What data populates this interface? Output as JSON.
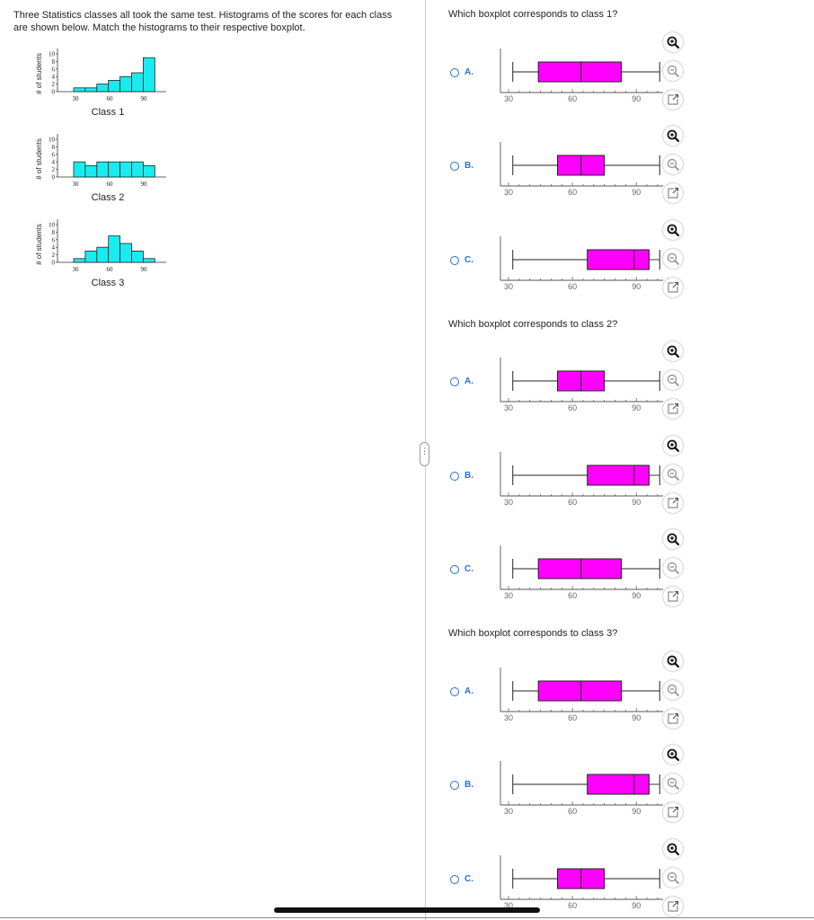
{
  "intro": {
    "text": "Three Statistics classes all took the same test. Histograms of the scores for each class are shown below. Match the histograms to their respective boxplot."
  },
  "histograms": [
    {
      "caption": "Class 1",
      "ylabel": "# of students",
      "y_ticks": [
        "10",
        "8",
        "6",
        "4",
        "2",
        "0"
      ],
      "x_ticks": [
        "30",
        "60",
        "90"
      ],
      "counts": [
        1,
        1,
        2,
        3,
        4,
        5,
        9
      ],
      "bar_color": "#19ecf0"
    },
    {
      "caption": "Class 2",
      "ylabel": "# of students",
      "y_ticks": [
        "10",
        "8",
        "6",
        "4",
        "2",
        "0"
      ],
      "x_ticks": [
        "30",
        "60",
        "90"
      ],
      "counts": [
        4,
        3,
        4,
        4,
        4,
        4,
        3
      ],
      "bar_color": "#19ecf0"
    },
    {
      "caption": "Class 3",
      "ylabel": "# of students",
      "y_ticks": [
        "10",
        "8",
        "6",
        "4",
        "2",
        "0"
      ],
      "x_ticks": [
        "30",
        "60",
        "90"
      ],
      "counts": [
        1,
        3,
        4,
        7,
        5,
        3,
        1
      ],
      "bar_color": "#19ecf0"
    }
  ],
  "axis_scale": {
    "min": 30,
    "max": 105,
    "ticks": [
      "30",
      "60",
      "90"
    ]
  },
  "questions": [
    {
      "prompt": "Which boxplot corresponds to class 1?",
      "options": [
        {
          "letter": "A.",
          "stats": {
            "min": 32,
            "q1": 44,
            "median": 64,
            "q3": 83,
            "max": 101
          }
        },
        {
          "letter": "B.",
          "stats": {
            "min": 32,
            "q1": 53,
            "median": 64,
            "q3": 75,
            "max": 101
          }
        },
        {
          "letter": "C.",
          "stats": {
            "min": 32,
            "q1": 67,
            "median": 89,
            "q3": 96,
            "max": 101
          }
        }
      ]
    },
    {
      "prompt": "Which boxplot corresponds to class 2?",
      "options": [
        {
          "letter": "A.",
          "stats": {
            "min": 32,
            "q1": 53,
            "median": 64,
            "q3": 75,
            "max": 101
          }
        },
        {
          "letter": "B.",
          "stats": {
            "min": 32,
            "q1": 67,
            "median": 89,
            "q3": 96,
            "max": 101
          }
        },
        {
          "letter": "C.",
          "stats": {
            "min": 32,
            "q1": 44,
            "median": 64,
            "q3": 83,
            "max": 101
          }
        }
      ]
    },
    {
      "prompt": "Which boxplot corresponds to class 3?",
      "options": [
        {
          "letter": "A.",
          "stats": {
            "min": 32,
            "q1": 44,
            "median": 64,
            "q3": 83,
            "max": 101
          }
        },
        {
          "letter": "B.",
          "stats": {
            "min": 32,
            "q1": 67,
            "median": 89,
            "q3": 96,
            "max": 101
          }
        },
        {
          "letter": "C.",
          "stats": {
            "min": 32,
            "q1": 53,
            "median": 64,
            "q3": 75,
            "max": 101
          }
        }
      ]
    }
  ],
  "icons": [
    "zoom-in-icon",
    "zoom-out-icon",
    "open-external-icon"
  ],
  "colors": {
    "box_fill": "#ff00ff",
    "histogram_fill": "#19ecf0",
    "option_blue": "#2a6fd6",
    "drag_handle_glyph": "⋮"
  }
}
